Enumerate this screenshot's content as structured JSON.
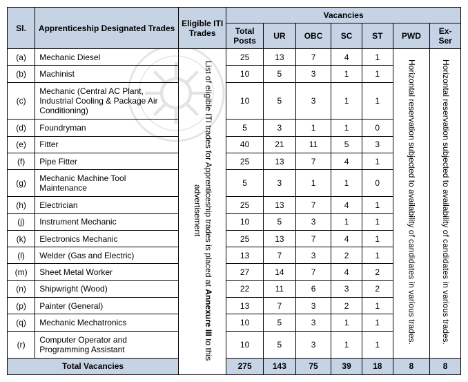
{
  "headers": {
    "sl": "Sl.",
    "trades": "Apprenticeship Designated Trades",
    "eligible": "Eligible ITI Trades",
    "vacancies": "Vacancies",
    "total_posts": "Total Posts",
    "ur": "UR",
    "obc": "OBC",
    "sc": "SC",
    "st": "ST",
    "pwd": "PWD",
    "exser": "Ex-Ser"
  },
  "eligible_note_part1": "List of eligible ITI trades for Apprenticeship trades is placed at ",
  "eligible_note_bold": "Annexure III",
  "eligible_note_part2": " to this advertisement",
  "pwd_note": "Horizontal reservation subjected to availability of candidates in various trades.",
  "exser_note": "Horizontal reservation subjected to availability of candidates in various trades.",
  "rows": [
    {
      "sl": "(a)",
      "trade": "Mechanic Diesel",
      "tp": "25",
      "ur": "13",
      "obc": "7",
      "sc": "4",
      "st": "1"
    },
    {
      "sl": "(b)",
      "trade": "Machinist",
      "tp": "10",
      "ur": "5",
      "obc": "3",
      "sc": "1",
      "st": "1"
    },
    {
      "sl": "(c)",
      "trade": "Mechanic (Central AC Plant, Industrial Cooling & Package Air Conditioning)",
      "tp": "10",
      "ur": "5",
      "obc": "3",
      "sc": "1",
      "st": "1"
    },
    {
      "sl": "(d)",
      "trade": "Foundryman",
      "tp": "5",
      "ur": "3",
      "obc": "1",
      "sc": "1",
      "st": "0"
    },
    {
      "sl": "(e)",
      "trade": "Fitter",
      "tp": "40",
      "ur": "21",
      "obc": "11",
      "sc": "5",
      "st": "3"
    },
    {
      "sl": "(f)",
      "trade": "Pipe Fitter",
      "tp": "25",
      "ur": "13",
      "obc": "7",
      "sc": "4",
      "st": "1"
    },
    {
      "sl": "(g)",
      "trade": "Mechanic Machine Tool Maintenance",
      "tp": "5",
      "ur": "3",
      "obc": "1",
      "sc": "1",
      "st": "0"
    },
    {
      "sl": "(h)",
      "trade": "Electrician",
      "tp": "25",
      "ur": "13",
      "obc": "7",
      "sc": "4",
      "st": "1"
    },
    {
      "sl": "(j)",
      "trade": "Instrument Mechanic",
      "tp": "10",
      "ur": "5",
      "obc": "3",
      "sc": "1",
      "st": "1"
    },
    {
      "sl": "(k)",
      "trade": "Electronics Mechanic",
      "tp": "25",
      "ur": "13",
      "obc": "7",
      "sc": "4",
      "st": "1"
    },
    {
      "sl": "(l)",
      "trade": "Welder (Gas and Electric)",
      "tp": "13",
      "ur": "7",
      "obc": "3",
      "sc": "2",
      "st": "1"
    },
    {
      "sl": "(m)",
      "trade": "Sheet Metal Worker",
      "tp": "27",
      "ur": "14",
      "obc": "7",
      "sc": "4",
      "st": "2"
    },
    {
      "sl": "(n)",
      "trade": "Shipwright (Wood)",
      "tp": "22",
      "ur": "11",
      "obc": "6",
      "sc": "3",
      "st": "2"
    },
    {
      "sl": "(p)",
      "trade": "Painter (General)",
      "tp": "13",
      "ur": "7",
      "obc": "3",
      "sc": "2",
      "st": "1"
    },
    {
      "sl": "(q)",
      "trade": "Mechanic Mechatronics",
      "tp": "10",
      "ur": "5",
      "obc": "3",
      "sc": "1",
      "st": "1"
    },
    {
      "sl": "(r)",
      "trade": "Computer Operator and Programming Assistant",
      "tp": "10",
      "ur": "5",
      "obc": "3",
      "sc": "1",
      "st": "1"
    }
  ],
  "totals": {
    "label": "Total Vacancies",
    "tp": "275",
    "ur": "143",
    "obc": "75",
    "sc": "39",
    "st": "18",
    "pwd": "8",
    "exser": "8"
  },
  "style": {
    "header_bg": "#c5d3e5",
    "border_color": "#000000",
    "font_family": "Arial, Helvetica, sans-serif",
    "font_size_pt": 9,
    "row_count": 16
  }
}
